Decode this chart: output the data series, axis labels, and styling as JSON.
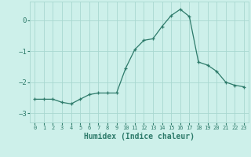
{
  "x": [
    0,
    1,
    2,
    3,
    4,
    5,
    6,
    7,
    8,
    9,
    10,
    11,
    12,
    13,
    14,
    15,
    16,
    17,
    18,
    19,
    20,
    21,
    22,
    23
  ],
  "y": [
    -2.55,
    -2.55,
    -2.55,
    -2.65,
    -2.7,
    -2.55,
    -2.4,
    -2.35,
    -2.35,
    -2.35,
    -1.55,
    -0.95,
    -0.65,
    -0.6,
    -0.2,
    0.15,
    0.35,
    0.12,
    -1.35,
    -1.45,
    -1.65,
    -2.0,
    -2.1,
    -2.15
  ],
  "line_color": "#2d7a6a",
  "marker": "+",
  "marker_color": "#2d7a6a",
  "bg_color": "#cdf0ea",
  "grid_color": "#a8d8d0",
  "xlabel": "Humidex (Indice chaleur)",
  "xlabel_fontsize": 7,
  "tick_color": "#2d7a6a",
  "yticks": [
    -3,
    -2,
    -1,
    0
  ],
  "ylim": [
    -3.3,
    0.6
  ],
  "xlim": [
    -0.5,
    23.5
  ],
  "xtick_labels": [
    "0",
    "1",
    "2",
    "3",
    "4",
    "5",
    "6",
    "7",
    "8",
    "9",
    "10",
    "11",
    "12",
    "13",
    "14",
    "15",
    "16",
    "17",
    "18",
    "19",
    "20",
    "21",
    "22",
    "23"
  ]
}
